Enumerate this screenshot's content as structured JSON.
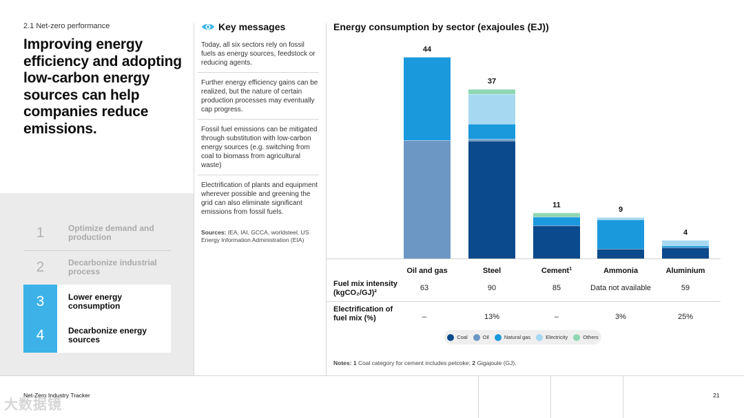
{
  "section_label": "2.1  Net-zero performance",
  "headline": "Improving energy efficiency and adopting low-carbon energy sources can help companies reduce emissions.",
  "steps": [
    {
      "num": "1",
      "label": "Optimize demand and production",
      "active": false
    },
    {
      "num": "2",
      "label": "Decarbonize industrial process",
      "active": false
    },
    {
      "num": "3",
      "label": "Lower energy consumption",
      "active": true
    },
    {
      "num": "4",
      "label": "Decarbonize energy sources",
      "active": true
    }
  ],
  "key_messages": {
    "title": "Key messages",
    "icon": "eye-icon",
    "items": [
      "Today, all six sectors rely on fossil fuels as energy sources, feedstock or reducing agents.",
      "Further energy efficiency gains can be realized, but the nature of certain production processes may eventually cap progress.",
      "Fossil fuel emissions can be mitigated through substitution with low-carbon energy sources (e.g. switching from coal to biomass from agricultural waste)",
      "Electrification of plants and equipment wherever possible and greening the grid can also eliminate significant emissions from fossil fuels."
    ],
    "sources_label": "Sources:",
    "sources_text": "IEA, IAI, GCCA, worldsteel, US Energy Information Administration (EIA)"
  },
  "chart_data": {
    "type": "bar",
    "stacked": true,
    "title": "Energy consumption by sector (exajoules (EJ))",
    "categories": [
      "Oil and gas",
      "Steel",
      "Cement",
      "Ammonia",
      "Aluminium"
    ],
    "category_superscripts": [
      "",
      "",
      "1",
      "",
      ""
    ],
    "totals": [
      44,
      37,
      11,
      9,
      4
    ],
    "series": [
      {
        "name": "Coal",
        "color": "#0b4a8c",
        "values": [
          0,
          25.7,
          7.2,
          2.1,
          2.4
        ]
      },
      {
        "name": "Oil",
        "color": "#6c97c4",
        "values": [
          25.8,
          0.4,
          0,
          0,
          0
        ]
      },
      {
        "name": "Natural gas",
        "color": "#1a99dd",
        "values": [
          18.2,
          3.3,
          1.9,
          6.4,
          0.4
        ]
      },
      {
        "name": "Electricity",
        "color": "#a6d8f2",
        "values": [
          0,
          6.5,
          0,
          0.5,
          1.2
        ]
      },
      {
        "name": "Others",
        "color": "#8fd6b2",
        "values": [
          0,
          1.1,
          0.9,
          0,
          0
        ]
      }
    ],
    "ylim": [
      0,
      44
    ]
  },
  "table": {
    "row1_label": "Fuel mix intensity (kgCO₂/GJ)²",
    "row1": [
      "63",
      "90",
      "85",
      "Data not available",
      "59"
    ],
    "row2_label": "Electrification of fuel mix (%)",
    "row2": [
      "–",
      "13%",
      "–",
      "3%",
      "25%"
    ]
  },
  "notes": {
    "label": "Notes:",
    "n1": "1",
    "t1": "Coal category for cement includes petcoke;",
    "n2": "2",
    "t2": "Gigajoule (GJ)."
  },
  "footer": {
    "title": "Net-Zero Industry Tracker",
    "page": "21",
    "watermark": "大数据镜"
  }
}
